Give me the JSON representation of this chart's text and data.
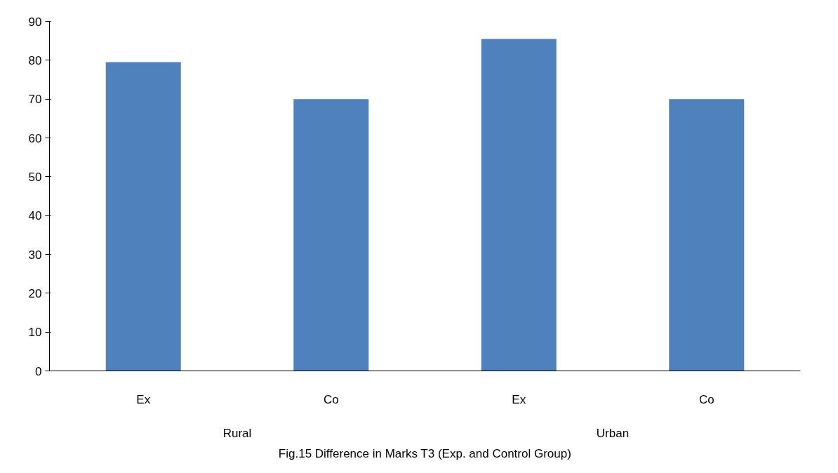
{
  "chart_data": {
    "type": "bar",
    "title": "Fig.15 Difference in Marks T3 (Exp. and Control Group)",
    "categories": [
      "Ex",
      "Co",
      "Ex",
      "Co"
    ],
    "annotations": [
      "Rural",
      "Urban"
    ],
    "series": [
      {
        "color": "#4f81bd",
        "values": [
          79.5,
          70,
          85.5,
          70
        ]
      }
    ],
    "ylim": [
      0,
      90
    ],
    "yticks": [
      0,
      10,
      20,
      30,
      40,
      50,
      60,
      70,
      80,
      90
    ]
  }
}
